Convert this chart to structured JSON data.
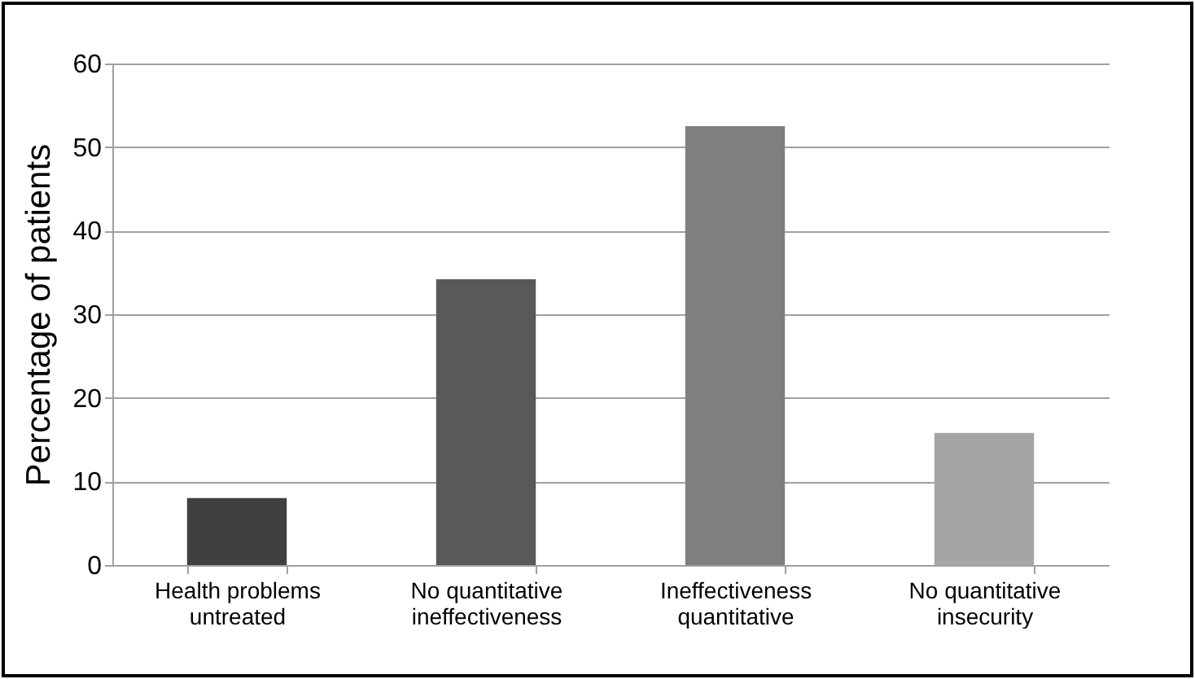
{
  "chart_data": {
    "type": "bar",
    "ylabel": "Percentage of patients",
    "categories": [
      "Health problems untreated",
      "No quantitative ineffectiveness",
      "Ineffectiveness quantitative",
      "No quantitative insecurity"
    ],
    "values": [
      8,
      34.2,
      52.5,
      15.8
    ],
    "colors": [
      "#404040",
      "#595959",
      "#7f7f7f",
      "#a5a5a5"
    ],
    "ylim": [
      0,
      60
    ],
    "yticks": [
      0,
      10,
      20,
      30,
      40,
      50,
      60
    ],
    "grid": "y"
  }
}
